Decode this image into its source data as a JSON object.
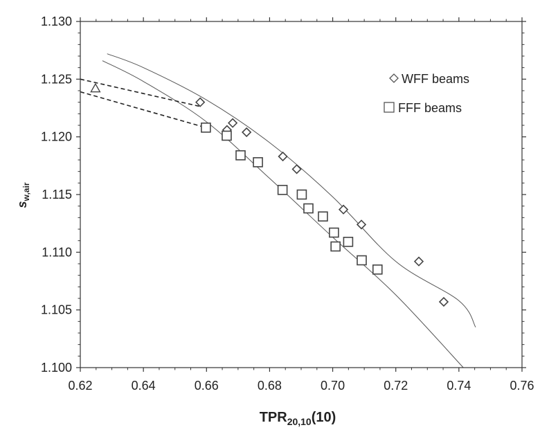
{
  "chart_data": {
    "type": "scatter",
    "title": "",
    "xlabel": {
      "main": "TPR",
      "sub": "20,10",
      "suffix": "(10)"
    },
    "ylabel": {
      "main": "s",
      "sub": "w,air"
    },
    "xlim": [
      0.62,
      0.76
    ],
    "ylim": [
      1.1,
      1.13
    ],
    "x_ticks": [
      "0.62",
      "0.64",
      "0.66",
      "0.68",
      "0.70",
      "0.72",
      "0.74",
      "0.76"
    ],
    "y_ticks": [
      "1.100",
      "1.105",
      "1.110",
      "1.115",
      "1.120",
      "1.125",
      "1.130"
    ],
    "grid": false,
    "legend_position": "top-right",
    "series": [
      {
        "name": "WFF beams",
        "marker": "diamond",
        "color": "#555555",
        "points": [
          [
            0.658,
            1.123
          ],
          [
            0.6665,
            1.1206
          ],
          [
            0.6683,
            1.1212
          ],
          [
            0.6727,
            1.1204
          ],
          [
            0.6842,
            1.1183
          ],
          [
            0.6886,
            1.1172
          ],
          [
            0.7034,
            1.1137
          ],
          [
            0.7091,
            1.1124
          ],
          [
            0.7273,
            1.1092
          ],
          [
            0.7352,
            1.1057
          ]
        ],
        "fit_curve": [
          [
            0.6285,
            1.1272
          ],
          [
            0.64,
            1.126
          ],
          [
            0.66,
            1.1232
          ],
          [
            0.68,
            1.1195
          ],
          [
            0.7,
            1.1148
          ],
          [
            0.72,
            1.1092
          ],
          [
            0.74,
            1.1058
          ],
          [
            0.7453,
            1.1035
          ]
        ]
      },
      {
        "name": "FFF beams",
        "marker": "square",
        "color": "#555555",
        "points": [
          [
            0.6598,
            1.1208
          ],
          [
            0.6664,
            1.1201
          ],
          [
            0.6708,
            1.1184
          ],
          [
            0.6763,
            1.1178
          ],
          [
            0.6841,
            1.1154
          ],
          [
            0.6902,
            1.115
          ],
          [
            0.6923,
            1.1138
          ],
          [
            0.6969,
            1.1131
          ],
          [
            0.7004,
            1.1117
          ],
          [
            0.7009,
            1.1105
          ],
          [
            0.7049,
            1.1109
          ],
          [
            0.7092,
            1.1093
          ],
          [
            0.7142,
            1.1085
          ]
        ],
        "fit_curve": [
          [
            0.627,
            1.1266
          ],
          [
            0.64,
            1.1248
          ],
          [
            0.66,
            1.1213
          ],
          [
            0.68,
            1.1164
          ],
          [
            0.7,
            1.1113
          ],
          [
            0.72,
            1.1063
          ],
          [
            0.7414,
            1.1
          ]
        ]
      },
      {
        "marker": "triangle",
        "color": "#555555",
        "points": [
          [
            0.6248,
            1.1242
          ]
        ]
      }
    ],
    "dashed_lines": [
      [
        [
          0.62,
          1.125
        ],
        [
          0.6585,
          1.1226
        ]
      ],
      [
        [
          0.62,
          1.1239
        ],
        [
          0.6598,
          1.1208
        ]
      ]
    ]
  }
}
